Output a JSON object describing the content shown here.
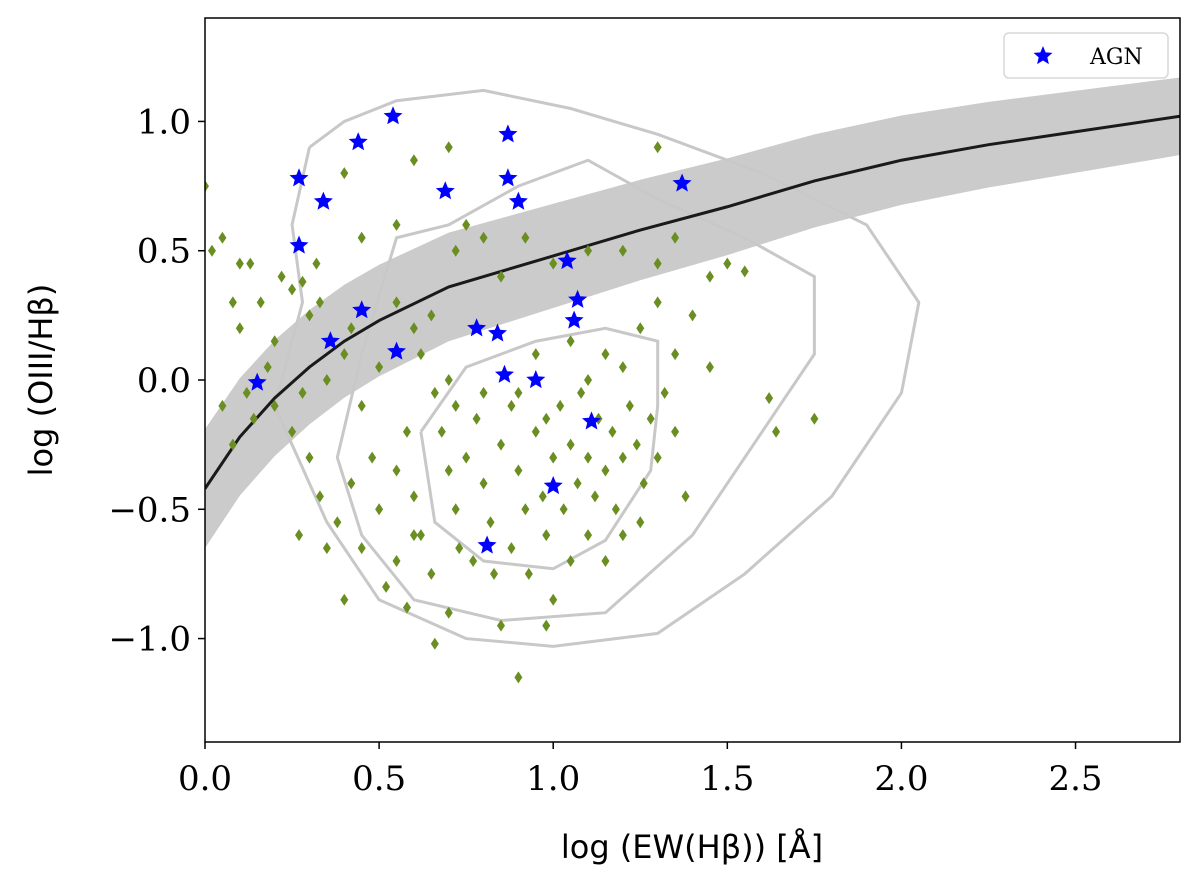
{
  "chart_data": {
    "type": "scatter",
    "xlabel": "log (EW(Hβ)) [Å]",
    "ylabel": "log (OIII/Hβ)",
    "xlim": [
      0,
      2.8
    ],
    "ylim": [
      -1.4,
      1.4
    ],
    "xticks": [
      0,
      0.5,
      1.0,
      1.5,
      2.0,
      2.5
    ],
    "xtick_labels": [
      "0.0",
      "0.5",
      "1.0",
      "1.5",
      "2.0",
      "2.5"
    ],
    "yticks": [
      1.0,
      0.5,
      0.0,
      -0.5,
      -1.0
    ],
    "ytick_labels": [
      "1.0",
      "0.5",
      "0.0",
      "−0.5",
      "−1.0"
    ],
    "legend": {
      "position": "top-right",
      "entries": [
        {
          "label": "AGN",
          "marker": "star",
          "color": "#0000ff"
        }
      ]
    },
    "colors": {
      "agn": "#0000ff",
      "galaxies": "#6b8e23",
      "contour": "#c8c8c8",
      "band": "#c8c8c8",
      "curve": "#1a1a1a"
    },
    "agn": [
      [
        0.15,
        -0.01
      ],
      [
        0.27,
        0.78
      ],
      [
        0.27,
        0.52
      ],
      [
        0.34,
        0.69
      ],
      [
        0.36,
        0.15
      ],
      [
        0.44,
        0.92
      ],
      [
        0.45,
        0.27
      ],
      [
        0.54,
        1.02
      ],
      [
        0.55,
        0.11
      ],
      [
        0.69,
        0.73
      ],
      [
        0.78,
        0.2
      ],
      [
        0.84,
        0.18
      ],
      [
        0.87,
        0.95
      ],
      [
        0.87,
        0.78
      ],
      [
        0.9,
        0.69
      ],
      [
        0.86,
        0.02
      ],
      [
        0.95,
        0.0
      ],
      [
        1.04,
        0.46
      ],
      [
        1.07,
        0.31
      ],
      [
        1.06,
        0.23
      ],
      [
        1.11,
        -0.16
      ],
      [
        1.0,
        -0.41
      ],
      [
        0.81,
        -0.64
      ],
      [
        1.37,
        0.76
      ]
    ],
    "galaxies": [
      [
        0.0,
        0.75
      ],
      [
        0.02,
        0.5
      ],
      [
        0.05,
        0.55
      ],
      [
        0.1,
        0.45
      ],
      [
        0.13,
        0.45
      ],
      [
        0.08,
        0.3
      ],
      [
        0.1,
        0.2
      ],
      [
        0.16,
        0.3
      ],
      [
        0.2,
        0.15
      ],
      [
        0.22,
        0.4
      ],
      [
        0.25,
        0.35
      ],
      [
        0.28,
        0.38
      ],
      [
        0.32,
        0.45
      ],
      [
        0.3,
        0.25
      ],
      [
        0.18,
        0.05
      ],
      [
        0.12,
        -0.05
      ],
      [
        0.05,
        -0.1
      ],
      [
        0.08,
        -0.25
      ],
      [
        0.14,
        -0.15
      ],
      [
        0.2,
        -0.1
      ],
      [
        0.25,
        -0.2
      ],
      [
        0.28,
        -0.05
      ],
      [
        0.35,
        0.0
      ],
      [
        0.4,
        0.1
      ],
      [
        0.42,
        0.2
      ],
      [
        0.45,
        -0.1
      ],
      [
        0.5,
        0.05
      ],
      [
        0.55,
        0.3
      ],
      [
        0.6,
        0.2
      ],
      [
        0.65,
        0.25
      ],
      [
        0.62,
        0.1
      ],
      [
        0.7,
        0.0
      ],
      [
        0.72,
        0.5
      ],
      [
        0.75,
        0.6
      ],
      [
        0.8,
        0.55
      ],
      [
        0.85,
        0.4
      ],
      [
        0.92,
        0.55
      ],
      [
        1.0,
        0.45
      ],
      [
        1.1,
        0.5
      ],
      [
        1.2,
        0.5
      ],
      [
        1.3,
        0.45
      ],
      [
        1.35,
        0.55
      ],
      [
        1.45,
        0.4
      ],
      [
        1.5,
        0.45
      ],
      [
        1.55,
        0.42
      ],
      [
        1.3,
        0.3
      ],
      [
        1.4,
        0.25
      ],
      [
        1.25,
        0.2
      ],
      [
        1.35,
        0.1
      ],
      [
        1.45,
        0.05
      ],
      [
        1.2,
        0.05
      ],
      [
        1.15,
        0.1
      ],
      [
        0.4,
        0.8
      ],
      [
        0.6,
        0.85
      ],
      [
        0.7,
        0.9
      ],
      [
        1.3,
        0.9
      ],
      [
        0.55,
        0.6
      ],
      [
        0.45,
        0.55
      ],
      [
        0.33,
        0.3
      ],
      [
        0.48,
        -0.3
      ],
      [
        0.42,
        -0.4
      ],
      [
        0.38,
        -0.55
      ],
      [
        0.45,
        -0.65
      ],
      [
        0.5,
        -0.5
      ],
      [
        0.55,
        -0.35
      ],
      [
        0.58,
        -0.2
      ],
      [
        0.6,
        -0.45
      ],
      [
        0.62,
        -0.6
      ],
      [
        0.65,
        -0.75
      ],
      [
        0.7,
        -0.9
      ],
      [
        0.72,
        -0.5
      ],
      [
        0.75,
        -0.3
      ],
      [
        0.78,
        -0.15
      ],
      [
        0.8,
        -0.4
      ],
      [
        0.82,
        -0.55
      ],
      [
        0.85,
        -0.25
      ],
      [
        0.88,
        -0.1
      ],
      [
        0.9,
        -0.35
      ],
      [
        0.92,
        -0.5
      ],
      [
        0.95,
        -0.2
      ],
      [
        0.97,
        -0.45
      ],
      [
        0.98,
        -0.6
      ],
      [
        1.0,
        -0.3
      ],
      [
        1.02,
        -0.1
      ],
      [
        1.03,
        -0.5
      ],
      [
        1.05,
        -0.25
      ],
      [
        1.07,
        -0.4
      ],
      [
        1.08,
        -0.05
      ],
      [
        1.1,
        -0.3
      ],
      [
        1.12,
        -0.45
      ],
      [
        1.13,
        -0.15
      ],
      [
        1.15,
        -0.35
      ],
      [
        1.17,
        -0.2
      ],
      [
        1.18,
        -0.5
      ],
      [
        1.2,
        -0.3
      ],
      [
        1.22,
        -0.1
      ],
      [
        1.24,
        -0.25
      ],
      [
        1.26,
        -0.4
      ],
      [
        1.28,
        -0.15
      ],
      [
        1.3,
        -0.3
      ],
      [
        1.32,
        -0.05
      ],
      [
        1.35,
        -0.2
      ],
      [
        1.38,
        -0.45
      ],
      [
        0.68,
        -0.2
      ],
      [
        0.7,
        -0.35
      ],
      [
        0.73,
        -0.65
      ],
      [
        0.77,
        -0.7
      ],
      [
        0.83,
        -0.75
      ],
      [
        0.88,
        -0.65
      ],
      [
        0.93,
        -0.75
      ],
      [
        1.0,
        -0.85
      ],
      [
        1.05,
        -0.7
      ],
      [
        0.98,
        -0.15
      ],
      [
        0.9,
        -0.05
      ],
      [
        0.8,
        -0.05
      ],
      [
        0.72,
        -0.1
      ],
      [
        0.66,
        -0.05
      ],
      [
        0.6,
        -0.6
      ],
      [
        0.55,
        -0.7
      ],
      [
        0.52,
        -0.8
      ],
      [
        0.58,
        -0.88
      ],
      [
        0.66,
        -1.02
      ],
      [
        0.9,
        -1.15
      ],
      [
        0.85,
        -0.95
      ],
      [
        1.1,
        -0.6
      ],
      [
        1.15,
        -0.7
      ],
      [
        1.2,
        -0.6
      ],
      [
        1.25,
        -0.55
      ],
      [
        0.95,
        0.1
      ],
      [
        1.05,
        0.15
      ],
      [
        1.1,
        0.0
      ],
      [
        0.98,
        -0.95
      ],
      [
        1.75,
        -0.15
      ],
      [
        1.64,
        -0.2
      ],
      [
        1.62,
        -0.07
      ],
      [
        0.4,
        -0.85
      ],
      [
        0.35,
        -0.65
      ],
      [
        0.33,
        -0.45
      ],
      [
        0.3,
        -0.3
      ],
      [
        0.27,
        -0.6
      ]
    ],
    "relation": {
      "x": [
        0,
        0.1,
        0.2,
        0.3,
        0.4,
        0.5,
        0.7,
        1.0,
        1.25,
        1.5,
        1.75,
        2.0,
        2.25,
        2.5,
        2.8
      ],
      "y": [
        -0.42,
        -0.22,
        -0.07,
        0.05,
        0.15,
        0.23,
        0.36,
        0.48,
        0.58,
        0.67,
        0.77,
        0.85,
        0.91,
        0.96,
        1.02
      ],
      "band_halfwidth": [
        0.23,
        0.15
      ]
    },
    "contours": [
      [
        [
          0.62,
          -0.2
        ],
        [
          0.66,
          -0.55
        ],
        [
          0.8,
          -0.7
        ],
        [
          1.0,
          -0.73
        ],
        [
          1.15,
          -0.62
        ],
        [
          1.28,
          -0.35
        ],
        [
          1.3,
          -0.1
        ],
        [
          1.3,
          0.15
        ],
        [
          1.15,
          0.2
        ],
        [
          0.95,
          0.15
        ],
        [
          0.75,
          0.05
        ],
        [
          0.62,
          -0.2
        ]
      ],
      [
        [
          0.45,
          0.1
        ],
        [
          0.38,
          -0.3
        ],
        [
          0.45,
          -0.6
        ],
        [
          0.6,
          -0.85
        ],
        [
          0.85,
          -0.93
        ],
        [
          1.15,
          -0.9
        ],
        [
          1.4,
          -0.6
        ],
        [
          1.6,
          -0.2
        ],
        [
          1.75,
          0.1
        ],
        [
          1.75,
          0.4
        ],
        [
          1.55,
          0.55
        ],
        [
          1.3,
          0.7
        ],
        [
          1.1,
          0.85
        ],
        [
          0.9,
          0.75
        ],
        [
          0.7,
          0.6
        ],
        [
          0.55,
          0.55
        ],
        [
          0.45,
          0.1
        ]
      ],
      [
        [
          0.3,
          0.9
        ],
        [
          0.25,
          0.6
        ],
        [
          0.28,
          0.3
        ],
        [
          0.2,
          -0.1
        ],
        [
          0.35,
          -0.55
        ],
        [
          0.5,
          -0.85
        ],
        [
          0.75,
          -1.0
        ],
        [
          1.0,
          -1.03
        ],
        [
          1.3,
          -0.98
        ],
        [
          1.55,
          -0.75
        ],
        [
          1.8,
          -0.45
        ],
        [
          2.0,
          -0.05
        ],
        [
          2.05,
          0.3
        ],
        [
          1.9,
          0.6
        ],
        [
          1.6,
          0.8
        ],
        [
          1.3,
          0.95
        ],
        [
          1.05,
          1.05
        ],
        [
          0.8,
          1.12
        ],
        [
          0.55,
          1.08
        ],
        [
          0.4,
          1.0
        ],
        [
          0.3,
          0.9
        ]
      ]
    ]
  }
}
